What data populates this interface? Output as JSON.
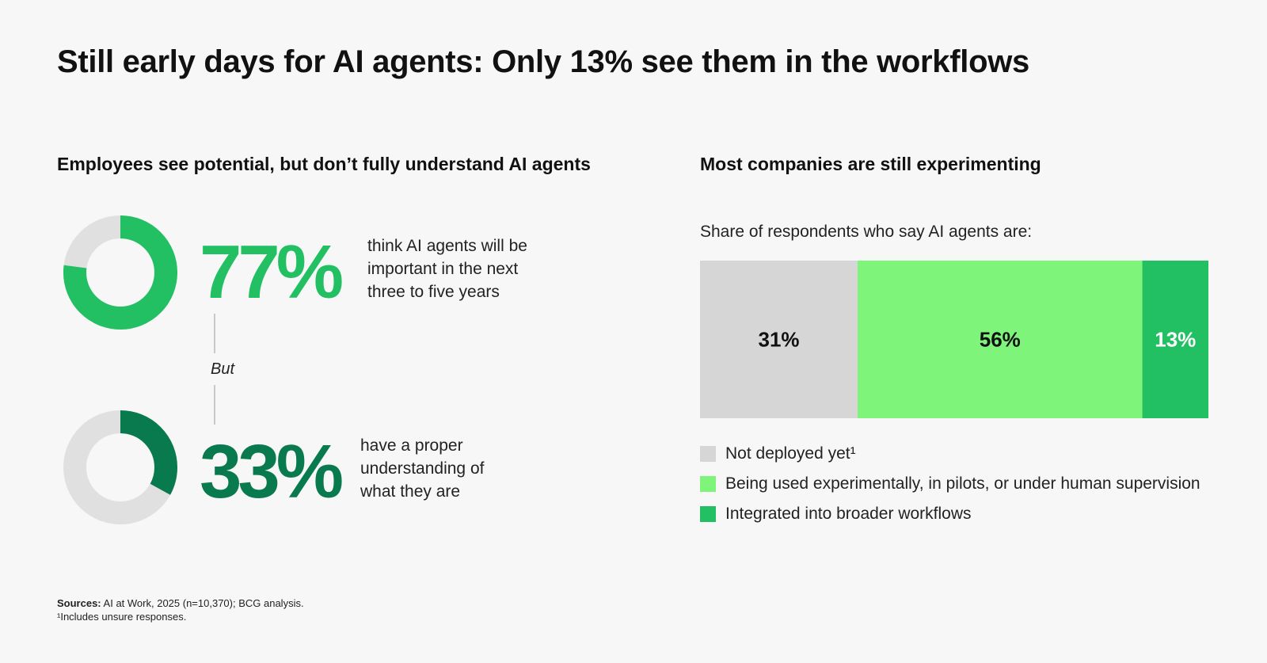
{
  "title": "Still early days for AI agents: Only 13% see them in the workflows",
  "left": {
    "subtitle": "Employees see potential, but don’t fully understand AI agents",
    "stat1": {
      "value_label": "77%",
      "text": "think AI agents will be important in the next three to five years",
      "fraction": 0.77
    },
    "connector_label": "But",
    "stat2": {
      "value_label": "33%",
      "text": "have a proper understanding of what they are",
      "fraction": 0.33
    }
  },
  "right": {
    "subtitle": "Most companies are still experimenting",
    "question": "Share of respondents who say AI agents are:"
  },
  "sources": {
    "label": "Sources:",
    "text": "AI at Work, 2025 (n=10,370); BCG analysis.",
    "footnote": "¹Includes unsure responses."
  },
  "colors": {
    "track": "#e0e0e0",
    "accent_light": "#22c062",
    "accent_dark": "#087a4e",
    "grey": "#d6d6d6",
    "lime": "#7ef47a",
    "green": "#22c062"
  },
  "chart_data": [
    {
      "type": "pie",
      "values": [
        77,
        23
      ],
      "labels": [
        "77%",
        ""
      ],
      "colors": [
        "#22c062",
        "#e0e0e0"
      ]
    },
    {
      "type": "pie",
      "values": [
        33,
        67
      ],
      "labels": [
        "33%",
        ""
      ],
      "colors": [
        "#087a4e",
        "#e0e0e0"
      ]
    },
    {
      "type": "bar",
      "stacked": true,
      "orientation": "horizontal",
      "categories": [
        ""
      ],
      "series": [
        {
          "name": "Not deployed yet¹",
          "values": [
            31
          ],
          "label": "31%",
          "color": "#d6d6d6",
          "label_color": "#111111"
        },
        {
          "name": "Being used experimentally, in pilots, or under human supervision",
          "values": [
            56
          ],
          "label": "56%",
          "color": "#7ef47a",
          "label_color": "#111111"
        },
        {
          "name": "Integrated into broader workflows",
          "values": [
            13
          ],
          "label": "13%",
          "color": "#22c062",
          "label_color": "#ffffff"
        }
      ],
      "xlim": [
        0,
        100
      ],
      "grid": false,
      "legend": "bottom-left"
    }
  ]
}
